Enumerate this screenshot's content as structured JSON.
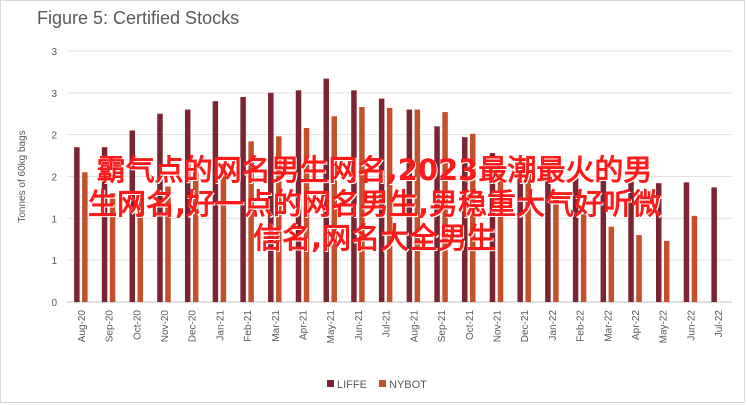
{
  "chart_data": {
    "type": "bar",
    "title": "Figure 5: Certified Stocks",
    "ylabel": "Tonnes of 60kg bags",
    "ylim": [
      0,
      3
    ],
    "yticks": [
      0,
      0.5,
      1,
      1.5,
      2,
      2.5,
      3
    ],
    "ytick_labels": [
      "0",
      "1",
      "1",
      "2",
      "2",
      "3",
      "3"
    ],
    "grid": true,
    "legend_position": "bottom",
    "categories": [
      "Aug-20",
      "Sep-20",
      "Oct-20",
      "Nov-20",
      "Dec-20",
      "Jan-21",
      "Feb-21",
      "Mar-21",
      "Apr-21",
      "May-21",
      "Jun-21",
      "Jul-21",
      "Aug-21",
      "Sep-21",
      "Oct-21",
      "Nov-21",
      "Dec-21",
      "Jan-22",
      "Feb-22",
      "Mar-22",
      "Apr-22",
      "May-22",
      "Jun-22",
      "Jul-22"
    ],
    "x_tick_labels": [
      "Aug-20",
      "Sep-20",
      "Oct-20",
      "Nov-20",
      "Dec-20",
      "Jan-21",
      "Feb-21",
      "Mar-21",
      "Apr-21",
      "May-21",
      "Jun-21",
      "Jul-21",
      "Aug-21",
      "Sep-21",
      "Oct-21",
      "Nov-21",
      "Dec-21",
      "Jan-22",
      "Feb-22",
      "Mar-22",
      "Apr-22",
      "May-22",
      "Jun-22",
      "Jul-22"
    ],
    "series": [
      {
        "name": "LIFFE",
        "color": "#7b2432",
        "values": [
          1.85,
          1.85,
          2.05,
          2.25,
          2.3,
          2.4,
          2.45,
          2.5,
          2.53,
          2.67,
          2.53,
          2.43,
          2.3,
          2.1,
          1.97,
          1.78,
          1.62,
          1.52,
          1.5,
          1.47,
          1.45,
          1.42,
          1.43,
          1.37
        ]
      },
      {
        "name": "NYBOT",
        "color": "#c4512a",
        "values": [
          1.55,
          1.3,
          1.3,
          1.38,
          1.55,
          1.65,
          1.92,
          1.98,
          2.08,
          2.22,
          2.33,
          2.32,
          2.3,
          2.27,
          2.01,
          1.7,
          1.56,
          1.3,
          1.05,
          0.9,
          0.8,
          0.73,
          1.03,
          null
        ]
      }
    ]
  },
  "overlay_text": "霸气点的网名男生网名,2023最潮最火的男\n生网名,好一点的网名男生,男稳重大气好听微\n信名,网名大全男生"
}
